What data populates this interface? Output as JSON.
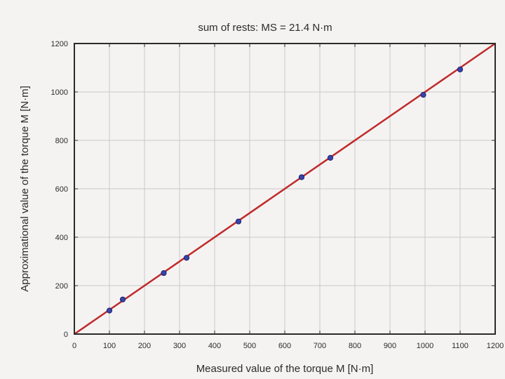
{
  "chart_data": {
    "type": "scatter",
    "title": "sum of rests: MS = 21.4 N·m",
    "xlabel": "Measured value of the torque M [N·m]",
    "ylabel": "Approximational value of the torque M [N·m]",
    "xlim": [
      0,
      1200
    ],
    "ylim": [
      0,
      1200
    ],
    "xticks": [
      0,
      100,
      200,
      300,
      400,
      500,
      600,
      700,
      800,
      900,
      1000,
      1100,
      1200
    ],
    "yticks": [
      0,
      200,
      400,
      600,
      800,
      1000,
      1200
    ],
    "grid": true,
    "series": [
      {
        "points": [
          [
            100,
            97
          ],
          [
            138,
            143
          ],
          [
            255,
            252
          ],
          [
            320,
            315
          ],
          [
            468,
            465
          ],
          [
            648,
            648
          ],
          [
            730,
            728
          ],
          [
            995,
            988
          ],
          [
            1100,
            1093
          ]
        ]
      }
    ],
    "fit_line": [
      [
        0,
        0
      ],
      [
        1200,
        1200
      ]
    ],
    "colors": {
      "point_fill": "#3a43a8",
      "point_stroke": "#1c2270",
      "fit_line": "#c02a2a",
      "grid": "#c8c8c8",
      "frame": "#2b2b2b"
    }
  }
}
